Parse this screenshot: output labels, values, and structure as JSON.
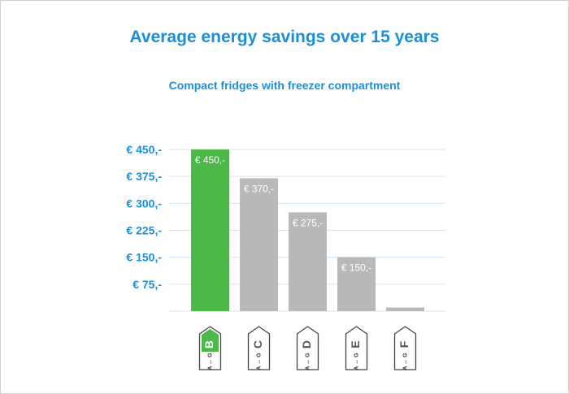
{
  "chart_data": {
    "type": "bar",
    "title": "Average energy savings over 15 years",
    "subtitle": "Compact fridges with freezer compartment",
    "categories": [
      "B",
      "C",
      "D",
      "E",
      "F"
    ],
    "values": [
      450,
      370,
      275,
      150,
      10
    ],
    "data_labels": [
      "€ 450,-",
      "€ 370,-",
      "€ 275,-",
      "€ 150,-",
      ""
    ],
    "y_ticks": [
      75,
      150,
      225,
      300,
      375,
      450
    ],
    "y_tick_labels": [
      "€ 75,-",
      "€ 150,-",
      "€ 225,-",
      "€ 300,-",
      "€ 375,-",
      "€ 450,-"
    ],
    "ylim": [
      0,
      450
    ],
    "xlabel": "",
    "ylabel": "",
    "grid": true,
    "energy_scale_text": [
      "A",
      "G"
    ],
    "colors": {
      "highlight": "#4cb848",
      "bar": "#b9b9b9",
      "text": "#1a8fdc",
      "grid": "#cfe6f5"
    },
    "highlight_index": 0
  }
}
